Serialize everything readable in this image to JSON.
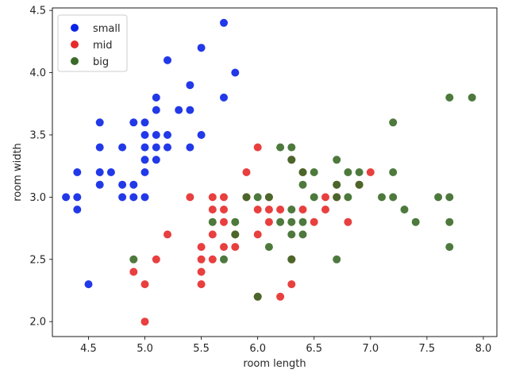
{
  "chart_data": {
    "type": "scatter",
    "title": "",
    "xlabel": "room length",
    "ylabel": "room width",
    "xlim": [
      4.18,
      8.12
    ],
    "ylim": [
      1.88,
      4.52
    ],
    "xticks": [
      "4.5",
      "5.0",
      "5.5",
      "6.0",
      "6.5",
      "7.0",
      "7.5",
      "8.0"
    ],
    "yticks": [
      "2.0",
      "2.5",
      "3.0",
      "3.5",
      "4.0",
      "4.5"
    ],
    "xtick_values": [
      4.5,
      5.0,
      5.5,
      6.0,
      6.5,
      7.0,
      7.5,
      8.0
    ],
    "ytick_values": [
      2.0,
      2.5,
      3.0,
      3.5,
      4.0,
      4.5
    ],
    "grid": false,
    "legend_position": "top-left",
    "series": [
      {
        "name": "small",
        "color": "#0a24e6",
        "points": [
          [
            4.3,
            3.0
          ],
          [
            4.4,
            2.9
          ],
          [
            4.4,
            3.0
          ],
          [
            4.4,
            3.2
          ],
          [
            4.5,
            2.3
          ],
          [
            4.6,
            3.1
          ],
          [
            4.6,
            3.2
          ],
          [
            4.6,
            3.4
          ],
          [
            4.6,
            3.6
          ],
          [
            4.7,
            3.2
          ],
          [
            4.8,
            3.0
          ],
          [
            4.8,
            3.1
          ],
          [
            4.8,
            3.4
          ],
          [
            4.9,
            3.0
          ],
          [
            4.9,
            3.1
          ],
          [
            4.9,
            3.6
          ],
          [
            5.0,
            3.0
          ],
          [
            5.0,
            3.2
          ],
          [
            5.0,
            3.3
          ],
          [
            5.0,
            3.4
          ],
          [
            5.0,
            3.5
          ],
          [
            5.0,
            3.6
          ],
          [
            5.1,
            3.3
          ],
          [
            5.1,
            3.4
          ],
          [
            5.1,
            3.5
          ],
          [
            5.1,
            3.7
          ],
          [
            5.1,
            3.8
          ],
          [
            5.2,
            3.4
          ],
          [
            5.2,
            3.5
          ],
          [
            5.2,
            4.1
          ],
          [
            5.3,
            3.7
          ],
          [
            5.4,
            3.4
          ],
          [
            5.4,
            3.7
          ],
          [
            5.4,
            3.9
          ],
          [
            5.5,
            3.5
          ],
          [
            5.5,
            4.2
          ],
          [
            5.7,
            3.8
          ],
          [
            5.7,
            4.4
          ],
          [
            5.8,
            4.0
          ]
        ]
      },
      {
        "name": "mid",
        "color": "#e62a2a",
        "points": [
          [
            4.9,
            2.4
          ],
          [
            5.0,
            2.0
          ],
          [
            5.0,
            2.3
          ],
          [
            5.1,
            2.5
          ],
          [
            5.2,
            2.7
          ],
          [
            5.4,
            3.0
          ],
          [
            5.5,
            2.3
          ],
          [
            5.5,
            2.4
          ],
          [
            5.5,
            2.5
          ],
          [
            5.5,
            2.6
          ],
          [
            5.6,
            2.5
          ],
          [
            5.6,
            2.7
          ],
          [
            5.6,
            2.9
          ],
          [
            5.6,
            3.0
          ],
          [
            5.7,
            2.6
          ],
          [
            5.7,
            2.8
          ],
          [
            5.7,
            2.9
          ],
          [
            5.7,
            3.0
          ],
          [
            5.8,
            2.6
          ],
          [
            5.8,
            2.7
          ],
          [
            5.9,
            3.0
          ],
          [
            5.9,
            3.2
          ],
          [
            6.0,
            2.2
          ],
          [
            6.0,
            2.7
          ],
          [
            6.0,
            2.9
          ],
          [
            6.0,
            3.4
          ],
          [
            6.1,
            2.8
          ],
          [
            6.1,
            2.9
          ],
          [
            6.1,
            3.0
          ],
          [
            6.2,
            2.2
          ],
          [
            6.2,
            2.9
          ],
          [
            6.3,
            2.3
          ],
          [
            6.3,
            2.5
          ],
          [
            6.3,
            3.3
          ],
          [
            6.4,
            2.9
          ],
          [
            6.4,
            3.2
          ],
          [
            6.5,
            2.8
          ],
          [
            6.6,
            2.9
          ],
          [
            6.6,
            3.0
          ],
          [
            6.7,
            3.0
          ],
          [
            6.7,
            3.1
          ],
          [
            6.8,
            2.8
          ],
          [
            6.9,
            3.1
          ],
          [
            7.0,
            3.2
          ]
        ]
      },
      {
        "name": "big",
        "color": "#3a6a28",
        "points": [
          [
            4.9,
            2.5
          ],
          [
            5.6,
            2.8
          ],
          [
            5.7,
            2.5
          ],
          [
            5.8,
            2.7
          ],
          [
            5.8,
            2.8
          ],
          [
            5.9,
            3.0
          ],
          [
            6.0,
            2.2
          ],
          [
            6.0,
            3.0
          ],
          [
            6.1,
            2.6
          ],
          [
            6.1,
            3.0
          ],
          [
            6.2,
            2.8
          ],
          [
            6.2,
            3.4
          ],
          [
            6.3,
            2.5
          ],
          [
            6.3,
            2.7
          ],
          [
            6.3,
            2.8
          ],
          [
            6.3,
            2.9
          ],
          [
            6.3,
            3.3
          ],
          [
            6.3,
            3.4
          ],
          [
            6.4,
            2.7
          ],
          [
            6.4,
            2.8
          ],
          [
            6.4,
            3.1
          ],
          [
            6.4,
            3.2
          ],
          [
            6.5,
            3.0
          ],
          [
            6.5,
            3.2
          ],
          [
            6.7,
            2.5
          ],
          [
            6.7,
            3.0
          ],
          [
            6.7,
            3.1
          ],
          [
            6.7,
            3.3
          ],
          [
            6.8,
            3.0
          ],
          [
            6.8,
            3.2
          ],
          [
            6.9,
            3.1
          ],
          [
            6.9,
            3.2
          ],
          [
            7.1,
            3.0
          ],
          [
            7.2,
            3.0
          ],
          [
            7.2,
            3.2
          ],
          [
            7.2,
            3.6
          ],
          [
            7.3,
            2.9
          ],
          [
            7.4,
            2.8
          ],
          [
            7.6,
            3.0
          ],
          [
            7.7,
            2.6
          ],
          [
            7.7,
            2.8
          ],
          [
            7.7,
            3.0
          ],
          [
            7.7,
            3.8
          ],
          [
            7.9,
            3.8
          ]
        ]
      }
    ]
  }
}
